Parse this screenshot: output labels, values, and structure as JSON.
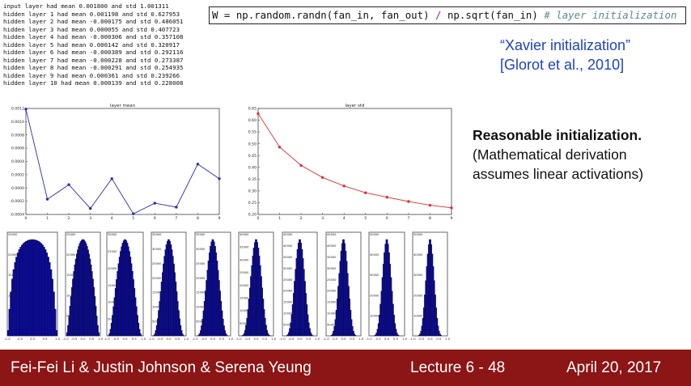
{
  "console": {
    "lines": [
      "input layer had mean 0.001800 and std 1.001311",
      "hidden layer 1 had mean 0.001198 and std 0.627953",
      "hidden layer 2 had mean -0.000175 and std 0.486051",
      "hidden layer 3 had mean 0.000055 and std 0.407723",
      "hidden layer 4 had mean -0.000306 and std 0.357108",
      "hidden layer 5 had mean 0.000142 and std 0.320917",
      "hidden layer 6 had mean -0.000389 and std 0.292116",
      "hidden layer 7 had mean -0.000228 and std 0.273387",
      "hidden layer 8 had mean -0.000291 and std 0.254935",
      "hidden layer 9 had mean 0.000361 and std 0.239266",
      "hidden layer 10 had mean 0.000139 and std 0.228008"
    ]
  },
  "code": {
    "part1": "W = np.random.randn(fan_in, fan_out) ",
    "op": "/",
    "part2": " np.sqrt(fan_in) ",
    "comment": "# layer initialization"
  },
  "xavier": {
    "line1": "“Xavier initialization”",
    "line2": "[Glorot et al., 2010]"
  },
  "note": {
    "line1": "Reasonable initialization.",
    "line2": "(Mathematical derivation",
    "line3": "assumes linear activations)"
  },
  "footer": {
    "authors": "Fei-Fei Li & Justin Johnson & Serena Yeung",
    "lecture": "Lecture 6 - 48",
    "date": "April 20, 2017"
  },
  "colors": {
    "footer_bg": "#8c1515",
    "link_blue": "#1d43c6",
    "mean_line": "#2b2bb8",
    "std_line": "#e03030",
    "hist_fill": "#0a0aa8"
  },
  "chart_data": [
    {
      "type": "line",
      "title": "layer mean",
      "x": [
        0,
        1,
        2,
        3,
        4,
        5,
        6,
        7,
        8,
        9
      ],
      "values": [
        0.00119,
        -0.00017,
        5e-05,
        -0.00031,
        0.00014,
        -0.00039,
        -0.00023,
        -0.00029,
        0.00036,
        0.00014
      ],
      "xlim": [
        0,
        9
      ],
      "ylim": [
        -0.0004,
        0.0012
      ],
      "xticks": [
        "0",
        "1",
        "2",
        "3",
        "4",
        "5",
        "6",
        "7",
        "8",
        "9"
      ],
      "yticks": [
        "-0.0004",
        "-0.0002",
        "0.0000",
        "0.0002",
        "0.0004",
        "0.0006",
        "0.0008",
        "0.0010",
        "0.0012"
      ]
    },
    {
      "type": "line",
      "title": "layer std",
      "x": [
        0,
        1,
        2,
        3,
        4,
        5,
        6,
        7,
        8,
        9
      ],
      "values": [
        0.628,
        0.486,
        0.408,
        0.357,
        0.321,
        0.292,
        0.273,
        0.255,
        0.239,
        0.228
      ],
      "xlim": [
        0,
        9
      ],
      "ylim": [
        0.2,
        0.65
      ],
      "xticks": [
        "0",
        "1",
        "2",
        "3",
        "4",
        "5",
        "6",
        "7",
        "8",
        "9"
      ],
      "yticks": [
        "0.20",
        "0.25",
        "0.30",
        "0.35",
        "0.40",
        "0.45",
        "0.50",
        "0.55",
        "0.60",
        "0.65"
      ]
    },
    {
      "type": "bar",
      "description": "histograms of activations for hidden layers 1-10",
      "xlim": [
        -1.0,
        1.0
      ],
      "xticks": [
        "-1.0",
        "-0.5",
        "0.0",
        "0.5",
        "1.0"
      ],
      "panels": [
        {
          "ymax": 25000,
          "yticks": [
            "5000",
            "10000",
            "15000",
            "20000",
            "25000"
          ],
          "std": 0.628
        },
        {
          "ymax": 25000,
          "yticks": [
            "5000",
            "10000",
            "15000",
            "20000",
            "25000"
          ],
          "std": 0.486
        },
        {
          "ymax": 30000,
          "yticks": [
            "5000",
            "10000",
            "15000",
            "20000",
            "25000",
            "30000"
          ],
          "std": 0.408
        },
        {
          "ymax": 35000,
          "yticks": [
            "5000",
            "10000",
            "15000",
            "20000",
            "25000",
            "30000",
            "35000"
          ],
          "std": 0.357
        },
        {
          "ymax": 35000,
          "yticks": [
            "5000",
            "10000",
            "15000",
            "20000",
            "25000",
            "30000",
            "35000"
          ],
          "std": 0.321
        },
        {
          "ymax": 40000,
          "yticks": [
            "5000",
            "10000",
            "15000",
            "20000",
            "25000",
            "30000",
            "35000",
            "40000"
          ],
          "std": 0.292
        },
        {
          "ymax": 45000,
          "yticks": [
            "5000",
            "10000",
            "15000",
            "20000",
            "25000",
            "30000",
            "35000",
            "40000",
            "45000"
          ],
          "std": 0.273
        },
        {
          "ymax": 45000,
          "yticks": [
            "5000",
            "10000",
            "15000",
            "20000",
            "25000",
            "30000",
            "35000",
            "40000",
            "45000"
          ],
          "std": 0.255
        },
        {
          "ymax": 50000,
          "yticks": [
            "10000",
            "20000",
            "30000",
            "40000",
            "50000"
          ],
          "std": 0.239
        },
        {
          "ymax": 50000,
          "yticks": [
            "10000",
            "20000",
            "30000",
            "40000",
            "50000"
          ],
          "std": 0.228
        }
      ]
    }
  ]
}
